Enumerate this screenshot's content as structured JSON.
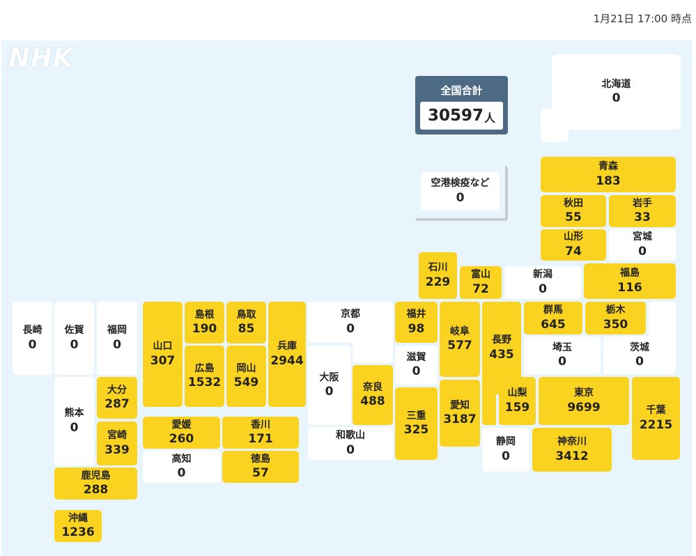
{
  "timestamp": "1月21日 17:00 時点",
  "logo": "NHK",
  "total": {
    "label": "全国合計",
    "value": "30597",
    "unit": "人"
  },
  "airport": {
    "name": "空港検疫など",
    "value": "0"
  },
  "colors": {
    "has_cases": "#fad320",
    "no_cases": "#ffffff",
    "total_panel": "#4d6a85",
    "background": "#e9f5fc"
  },
  "prefectures": {
    "hokkaido": {
      "name": "北海道",
      "value": "0"
    },
    "aomori": {
      "name": "青森",
      "value": "183"
    },
    "akita": {
      "name": "秋田",
      "value": "55"
    },
    "iwate": {
      "name": "岩手",
      "value": "33"
    },
    "yamagata": {
      "name": "山形",
      "value": "74"
    },
    "miyagi": {
      "name": "宮城",
      "value": "0"
    },
    "ishikawa": {
      "name": "石川",
      "value": "229"
    },
    "toyama": {
      "name": "富山",
      "value": "72"
    },
    "niigata": {
      "name": "新潟",
      "value": "0"
    },
    "fukushima": {
      "name": "福島",
      "value": "116"
    },
    "fukui": {
      "name": "福井",
      "value": "98"
    },
    "gifu": {
      "name": "岐阜",
      "value": "577"
    },
    "nagano": {
      "name": "長野",
      "value": "435"
    },
    "gunma": {
      "name": "群馬",
      "value": "645"
    },
    "tochigi": {
      "name": "栃木",
      "value": "350"
    },
    "saitama": {
      "name": "埼玉",
      "value": "0"
    },
    "ibaraki": {
      "name": "茨城",
      "value": "0"
    },
    "kyoto": {
      "name": "京都",
      "value": "0"
    },
    "shiga": {
      "name": "滋賀",
      "value": "0"
    },
    "osaka": {
      "name": "大阪",
      "value": "0"
    },
    "nara": {
      "name": "奈良",
      "value": "488"
    },
    "mie": {
      "name": "三重",
      "value": "325"
    },
    "aichi": {
      "name": "愛知",
      "value": "3187"
    },
    "yamanashi": {
      "name": "山梨",
      "value": "159"
    },
    "tokyo": {
      "name": "東京",
      "value": "9699"
    },
    "chiba": {
      "name": "千葉",
      "value": "2215"
    },
    "wakayama": {
      "name": "和歌山",
      "value": "0"
    },
    "shizuoka": {
      "name": "静岡",
      "value": "0"
    },
    "kanagawa": {
      "name": "神奈川",
      "value": "3412"
    },
    "hyogo": {
      "name": "兵庫",
      "value": "2944"
    },
    "shimane": {
      "name": "島根",
      "value": "190"
    },
    "tottori": {
      "name": "鳥取",
      "value": "85"
    },
    "yamaguchi": {
      "name": "山口",
      "value": "307"
    },
    "hiroshima": {
      "name": "広島",
      "value": "1532"
    },
    "okayama": {
      "name": "岡山",
      "value": "549"
    },
    "ehime": {
      "name": "愛媛",
      "value": "260"
    },
    "kagawa": {
      "name": "香川",
      "value": "171"
    },
    "kochi": {
      "name": "高知",
      "value": "0"
    },
    "tokushima": {
      "name": "徳島",
      "value": "57"
    },
    "nagasaki": {
      "name": "長崎",
      "value": "0"
    },
    "saga": {
      "name": "佐賀",
      "value": "0"
    },
    "fukuoka": {
      "name": "福岡",
      "value": "0"
    },
    "kumamoto": {
      "name": "熊本",
      "value": "0"
    },
    "oita": {
      "name": "大分",
      "value": "287"
    },
    "miyazaki": {
      "name": "宮崎",
      "value": "339"
    },
    "kagoshima": {
      "name": "鹿児島",
      "value": "288"
    },
    "okinawa": {
      "name": "沖縄",
      "value": "1236"
    }
  }
}
